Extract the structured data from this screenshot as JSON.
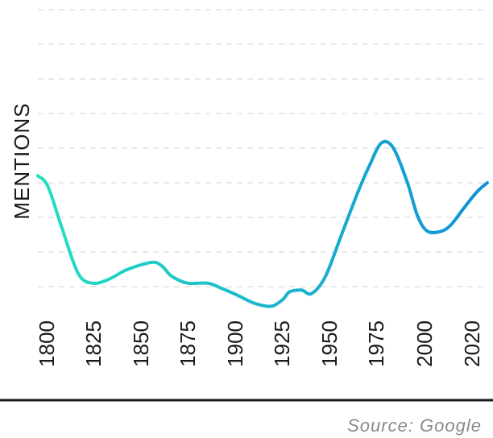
{
  "chart_data": {
    "type": "line",
    "title": "",
    "xlabel": "",
    "ylabel": "MENTIONS",
    "x_ticks": [
      "1800",
      "1825",
      "1850",
      "1875",
      "1900",
      "1925",
      "1950",
      "1975",
      "2000",
      "2020"
    ],
    "xlim": [
      1800,
      2025
    ],
    "ylim": [
      0,
      9
    ],
    "y_tick_labels_shown": false,
    "grid": true,
    "series": [
      {
        "x": [
          1800,
          1805,
          1812,
          1820,
          1827,
          1835,
          1845,
          1857,
          1862,
          1867,
          1875,
          1885,
          1892,
          1900,
          1907,
          1913,
          1918,
          1923,
          1926,
          1932,
          1937,
          1944,
          1952,
          1960,
          1966,
          1972,
          1978,
          1985,
          1990,
          1995,
          2002,
          2007,
          2013,
          2020,
          2025
        ],
        "values": [
          4.2,
          3.9,
          2.7,
          1.4,
          1.1,
          1.2,
          1.5,
          1.7,
          1.6,
          1.3,
          1.1,
          1.1,
          0.95,
          0.75,
          0.55,
          0.45,
          0.45,
          0.65,
          0.85,
          0.9,
          0.8,
          1.3,
          2.5,
          3.7,
          4.5,
          5.15,
          5.0,
          4.0,
          3.05,
          2.6,
          2.6,
          2.8,
          3.25,
          3.75,
          4.0
        ],
        "colors": [
          "#22e0c0",
          "#1090d8"
        ]
      }
    ]
  },
  "source": "Source: Google"
}
